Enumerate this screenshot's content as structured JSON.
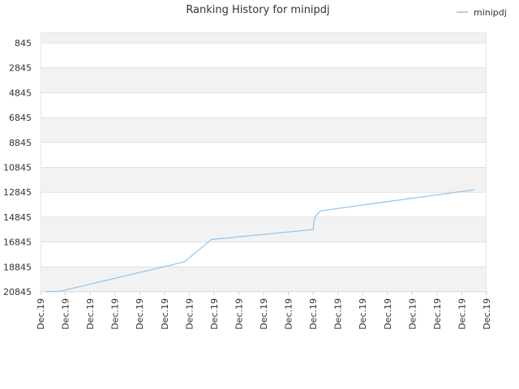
{
  "chart_data": {
    "type": "line",
    "title": "Ranking History for minipdj",
    "xlabel": "",
    "ylabel": "",
    "legend": {
      "position": "top-right",
      "entries": [
        "minipdj"
      ]
    },
    "grid": true,
    "y_inverted": true,
    "ylim": [
      845,
      20845
    ],
    "y_ticks": [
      "845",
      "2845",
      "4845",
      "6845",
      "8845",
      "10845",
      "12845",
      "14845",
      "16845",
      "18845",
      "20845"
    ],
    "x_ticks": [
      "Dec.19",
      "Dec.19",
      "Dec.19",
      "Dec.19",
      "Dec.19",
      "Dec.19",
      "Dec.19",
      "Dec.19",
      "Dec.19",
      "Dec.19",
      "Dec.19",
      "Dec.19",
      "Dec.19",
      "Dec.19",
      "Dec.19",
      "Dec.19",
      "Dec.19",
      "Dec.19",
      "Dec.19"
    ],
    "colors": {
      "series": "#90c3ec",
      "band": "#f2f2f2",
      "grid": "#e0e0e0"
    },
    "series": [
      {
        "name": "minipdj",
        "x": [
          0.2,
          0.8,
          5.8,
          6.9,
          11.0,
          11.05,
          11.1,
          11.3,
          17.5
        ],
        "y": [
          20845,
          20800,
          18445,
          16645,
          15845,
          15045,
          14745,
          14345,
          12645
        ]
      }
    ]
  }
}
